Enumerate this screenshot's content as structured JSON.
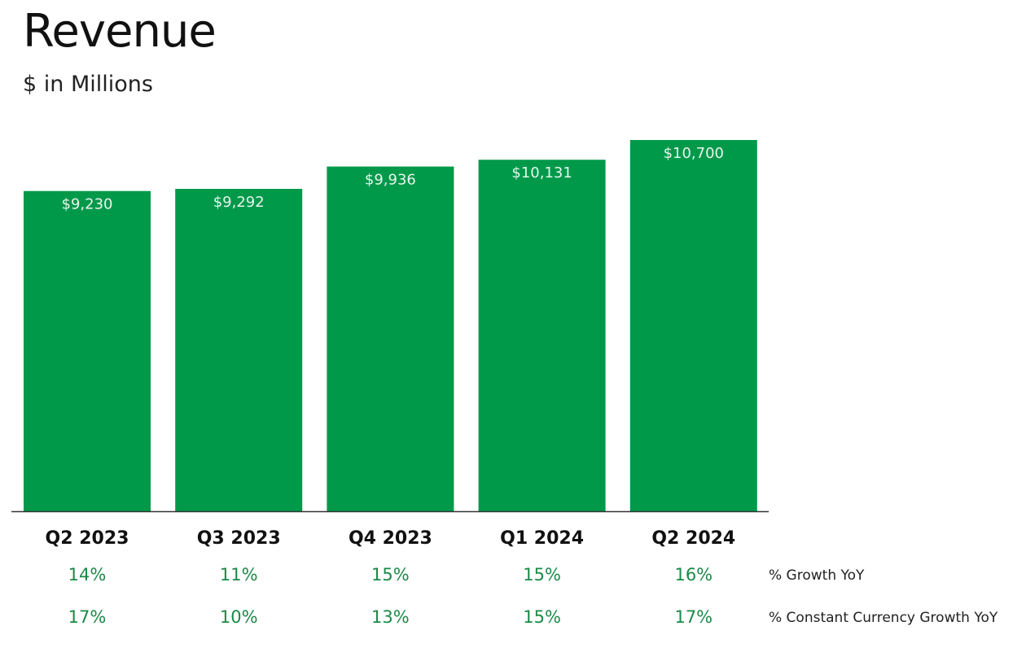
{
  "chart_data": {
    "type": "bar",
    "title": "Revenue",
    "subtitle": "$ in Millions",
    "categories": [
      "Q2 2023",
      "Q3 2023",
      "Q4 2023",
      "Q1 2024",
      "Q2 2024"
    ],
    "values": [
      9230,
      9292,
      9936,
      10131,
      10700
    ],
    "value_labels": [
      "$9,230",
      "$9,292",
      "$9,936",
      "$10,131",
      "$10,700"
    ],
    "bar_color": "#00994a",
    "grid": false,
    "legend": "none",
    "rows": [
      {
        "label": "% Growth YoY",
        "values": [
          "14%",
          "11%",
          "15%",
          "15%",
          "16%"
        ]
      },
      {
        "label": "% Constant Currency Growth YoY",
        "values": [
          "17%",
          "10%",
          "13%",
          "15%",
          "17%"
        ]
      }
    ]
  }
}
